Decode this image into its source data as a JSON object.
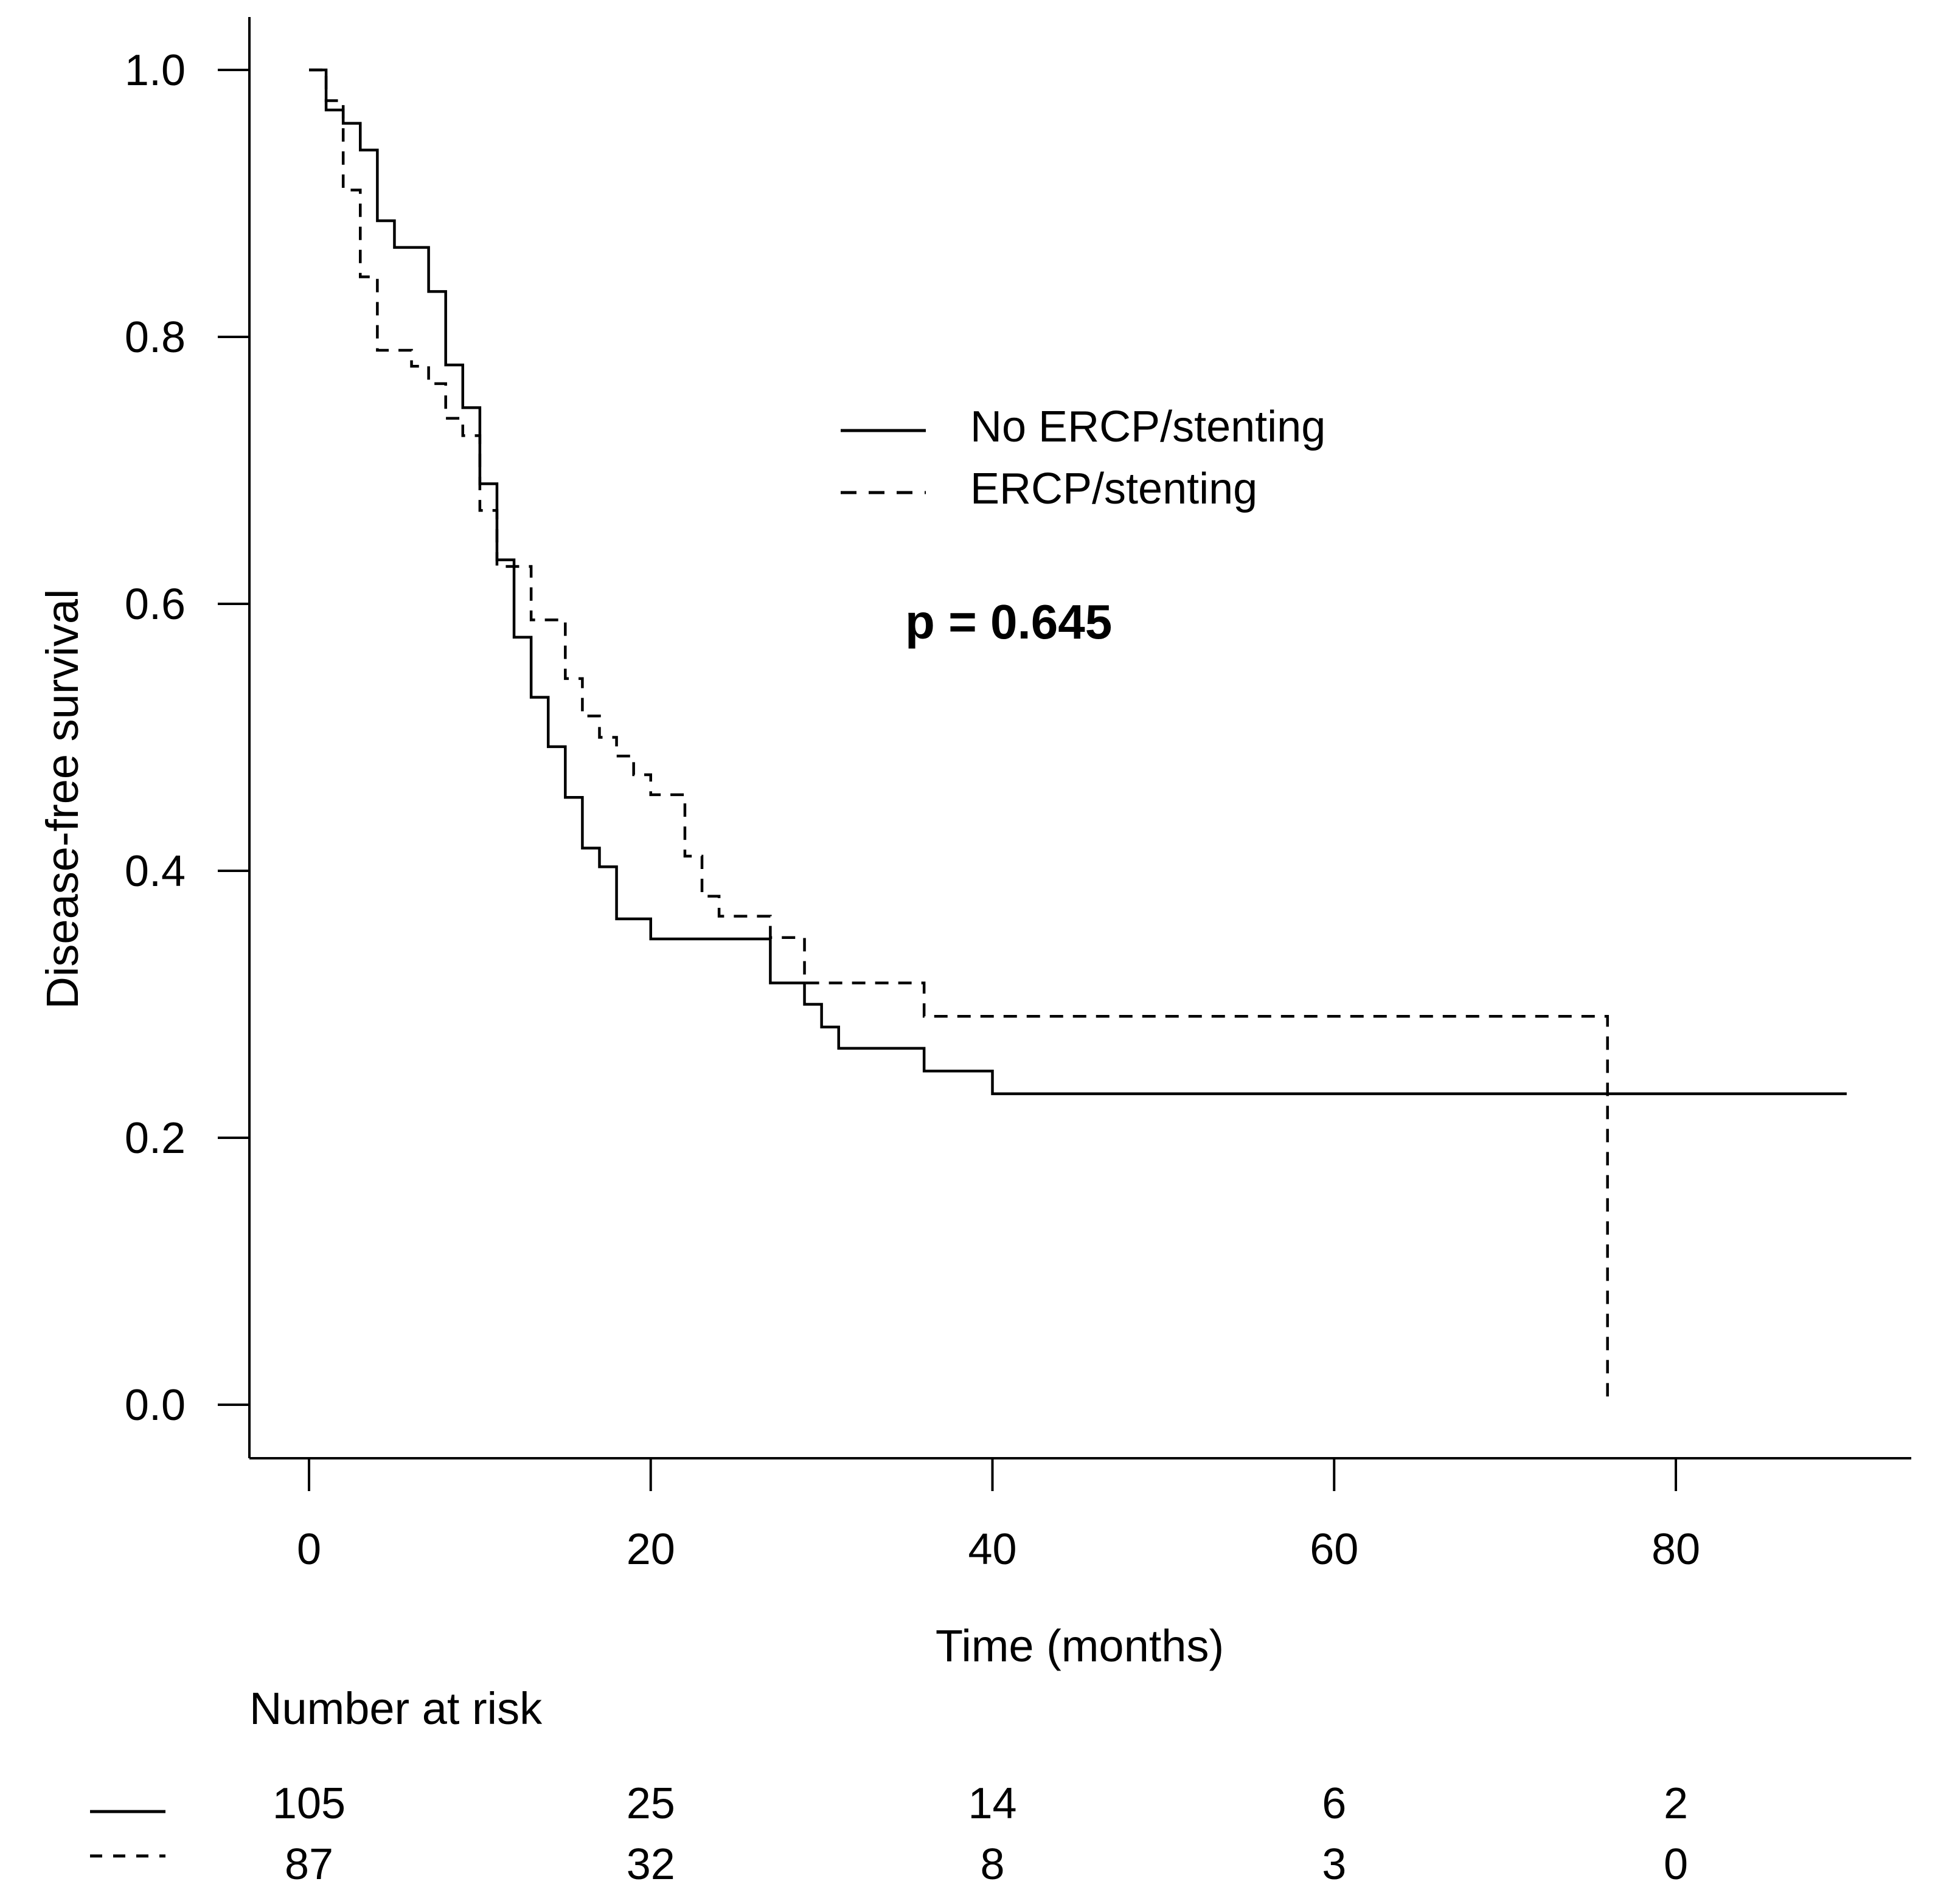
{
  "chart_data": {
    "type": "line",
    "subtype": "kaplan-meier",
    "title": "",
    "xlabel": "Time (months)",
    "ylabel": "Disease-free survival",
    "xlim": [
      0,
      90
    ],
    "ylim": [
      0.0,
      1.0
    ],
    "x_ticks": [
      0,
      20,
      40,
      60,
      80
    ],
    "x_tick_labels": [
      "0",
      "20",
      "40",
      "60",
      "80"
    ],
    "y_ticks": [
      0.0,
      0.2,
      0.4,
      0.6,
      0.8,
      1.0
    ],
    "y_tick_labels": [
      "0.0",
      "0.2",
      "0.4",
      "0.6",
      "0.8",
      "1.0"
    ],
    "grid": false,
    "legend_position": "top-center",
    "annotation": "p = 0.645",
    "series": [
      {
        "name": "No ERCP/stenting",
        "line_style": "solid",
        "color": "#000000",
        "steps": [
          [
            0,
            1.0
          ],
          [
            1,
            0.97
          ],
          [
            2,
            0.96
          ],
          [
            3,
            0.94
          ],
          [
            4,
            0.887
          ],
          [
            5,
            0.867
          ],
          [
            7,
            0.834
          ],
          [
            8,
            0.779
          ],
          [
            9,
            0.747
          ],
          [
            10,
            0.69
          ],
          [
            11,
            0.633
          ],
          [
            12,
            0.575
          ],
          [
            13,
            0.53
          ],
          [
            14,
            0.493
          ],
          [
            15,
            0.455
          ],
          [
            16,
            0.417
          ],
          [
            17,
            0.403
          ],
          [
            18,
            0.364
          ],
          [
            20,
            0.349
          ],
          [
            27,
            0.316
          ],
          [
            29,
            0.3
          ],
          [
            30,
            0.283
          ],
          [
            31,
            0.267
          ],
          [
            36,
            0.25
          ],
          [
            40,
            0.233
          ],
          [
            90,
            0.233
          ]
        ]
      },
      {
        "name": "ERCP/stenting",
        "line_style": "dashed",
        "color": "#000000",
        "steps": [
          [
            0,
            1.0
          ],
          [
            1,
            0.977
          ],
          [
            2,
            0.91
          ],
          [
            3,
            0.845
          ],
          [
            4,
            0.79
          ],
          [
            5,
            0.79
          ],
          [
            6,
            0.778
          ],
          [
            7,
            0.765
          ],
          [
            8,
            0.739
          ],
          [
            9,
            0.726
          ],
          [
            10,
            0.67
          ],
          [
            11,
            0.628
          ],
          [
            13,
            0.588
          ],
          [
            15,
            0.544
          ],
          [
            16,
            0.516
          ],
          [
            17,
            0.5
          ],
          [
            18,
            0.486
          ],
          [
            19,
            0.472
          ],
          [
            20,
            0.457
          ],
          [
            22,
            0.411
          ],
          [
            23,
            0.381
          ],
          [
            24,
            0.366
          ],
          [
            27,
            0.35
          ],
          [
            29,
            0.316
          ],
          [
            36,
            0.291
          ],
          [
            76,
            0.0
          ]
        ]
      }
    ],
    "risk_table": {
      "title": "Number at risk",
      "times": [
        0,
        20,
        40,
        60,
        80
      ],
      "rows": [
        {
          "group": "No ERCP/stenting",
          "line_style": "solid",
          "values": [
            "105",
            "25",
            "14",
            "6",
            "2"
          ]
        },
        {
          "group": "ERCP/stenting",
          "line_style": "dashed",
          "values": [
            "87",
            "32",
            "8",
            "3",
            "0"
          ]
        }
      ]
    }
  }
}
